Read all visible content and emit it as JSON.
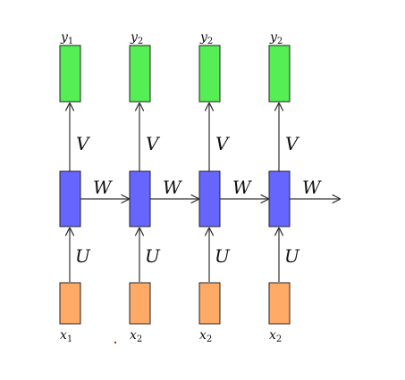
{
  "diagram": {
    "title": "",
    "outputs": [
      {
        "label": "y",
        "sub": "1"
      },
      {
        "label": "y",
        "sub": "2"
      },
      {
        "label": "y",
        "sub": "2"
      },
      {
        "label": "y",
        "sub": "2"
      }
    ],
    "inputs": [
      {
        "label": "x",
        "sub": "1"
      },
      {
        "label": "x",
        "sub": "2"
      },
      {
        "label": "x",
        "sub": "2"
      },
      {
        "label": "x",
        "sub": "2"
      }
    ],
    "weights": {
      "input_to_hidden": "U",
      "hidden_to_output": "V",
      "hidden_to_hidden": "W"
    },
    "colors": {
      "output_box": "#55ee55",
      "hidden_box": "#6666ff",
      "input_box": "#ffaa66",
      "arrow": "#333333",
      "stray_dot": "#cc2222"
    }
  }
}
